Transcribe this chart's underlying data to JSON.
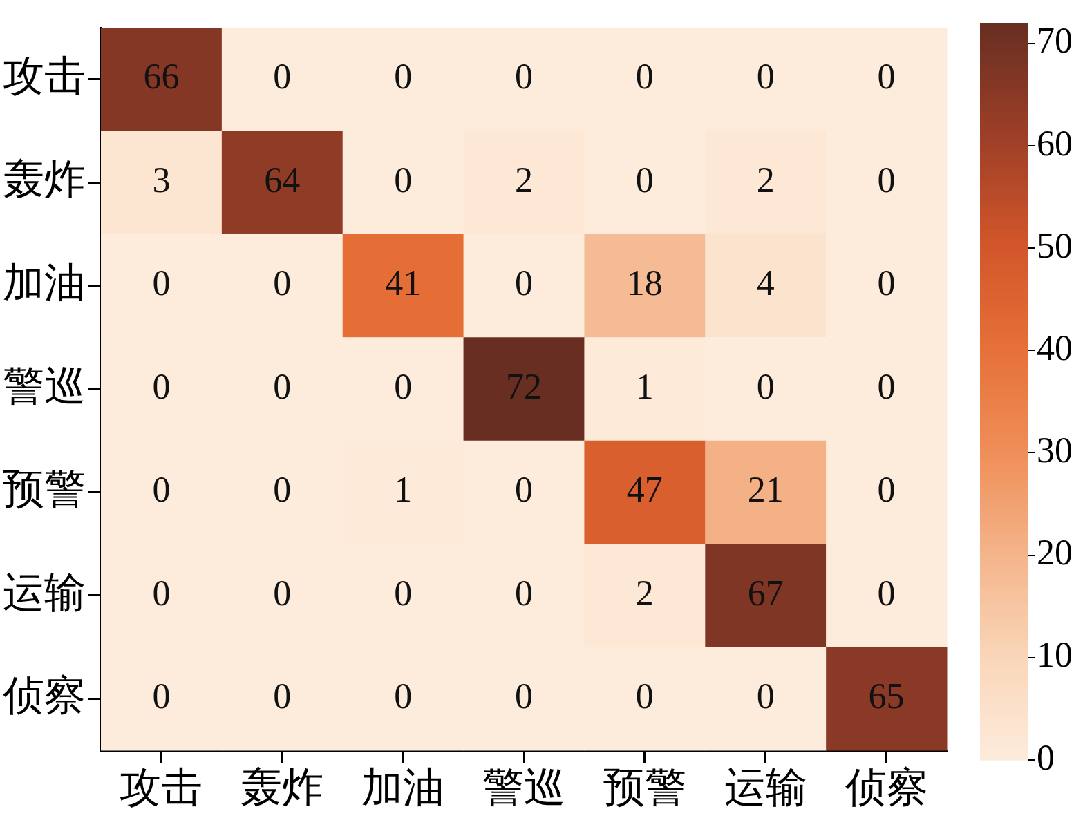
{
  "chart_data": {
    "type": "heatmap",
    "categories": [
      "攻击",
      "轰炸",
      "加油",
      "警巡",
      "预警",
      "运输",
      "侦察"
    ],
    "y_categories": [
      "攻击",
      "轰炸",
      "加油",
      "警巡",
      "预警",
      "运输",
      "侦察"
    ],
    "cells": [
      [
        66,
        0,
        0,
        0,
        0,
        0,
        0
      ],
      [
        3,
        64,
        0,
        2,
        0,
        2,
        0
      ],
      [
        0,
        0,
        41,
        0,
        18,
        4,
        0
      ],
      [
        0,
        0,
        0,
        72,
        1,
        0,
        0
      ],
      [
        0,
        0,
        1,
        0,
        47,
        21,
        0
      ],
      [
        0,
        0,
        0,
        0,
        2,
        67,
        0
      ],
      [
        0,
        0,
        0,
        0,
        0,
        0,
        65
      ]
    ],
    "data_labels": true,
    "clim": [
      0,
      72
    ],
    "cticks": [
      0,
      10,
      20,
      30,
      40,
      50,
      60,
      70
    ]
  }
}
